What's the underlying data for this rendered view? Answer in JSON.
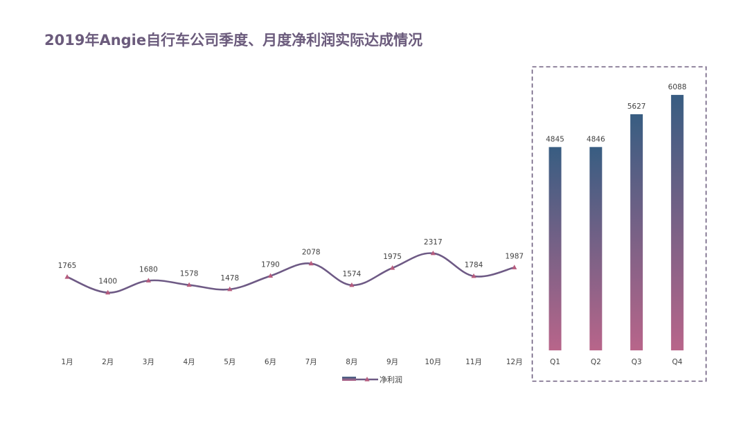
{
  "title": "2019年Angie自行车公司季度、月度净利润实际达成情况",
  "colors": {
    "title": "#6b5b7c",
    "line": "#6e5a85",
    "marker": "#b65c7e",
    "bar_top": "#385d82",
    "bar_bottom": "#b8658a",
    "box_border": "#6b5b7c",
    "text": "#404040"
  },
  "chart_data": [
    {
      "type": "line",
      "smooth": true,
      "categories": [
        "1月",
        "2月",
        "3月",
        "4月",
        "5月",
        "6月",
        "7月",
        "8月",
        "9月",
        "10月",
        "11月",
        "12月"
      ],
      "series": [
        {
          "name": "净利润",
          "values": [
            1765,
            1400,
            1680,
            1578,
            1478,
            1790,
            2078,
            1574,
            1975,
            2317,
            1784,
            1987
          ]
        }
      ],
      "data_labels": true,
      "grid": false,
      "legend": "bottom"
    },
    {
      "type": "bar",
      "categories": [
        "Q1",
        "Q2",
        "Q3",
        "Q4"
      ],
      "values": [
        4845,
        4846,
        5627,
        6088
      ],
      "data_labels": true,
      "grid": false,
      "fill": "vertical gradient"
    }
  ]
}
